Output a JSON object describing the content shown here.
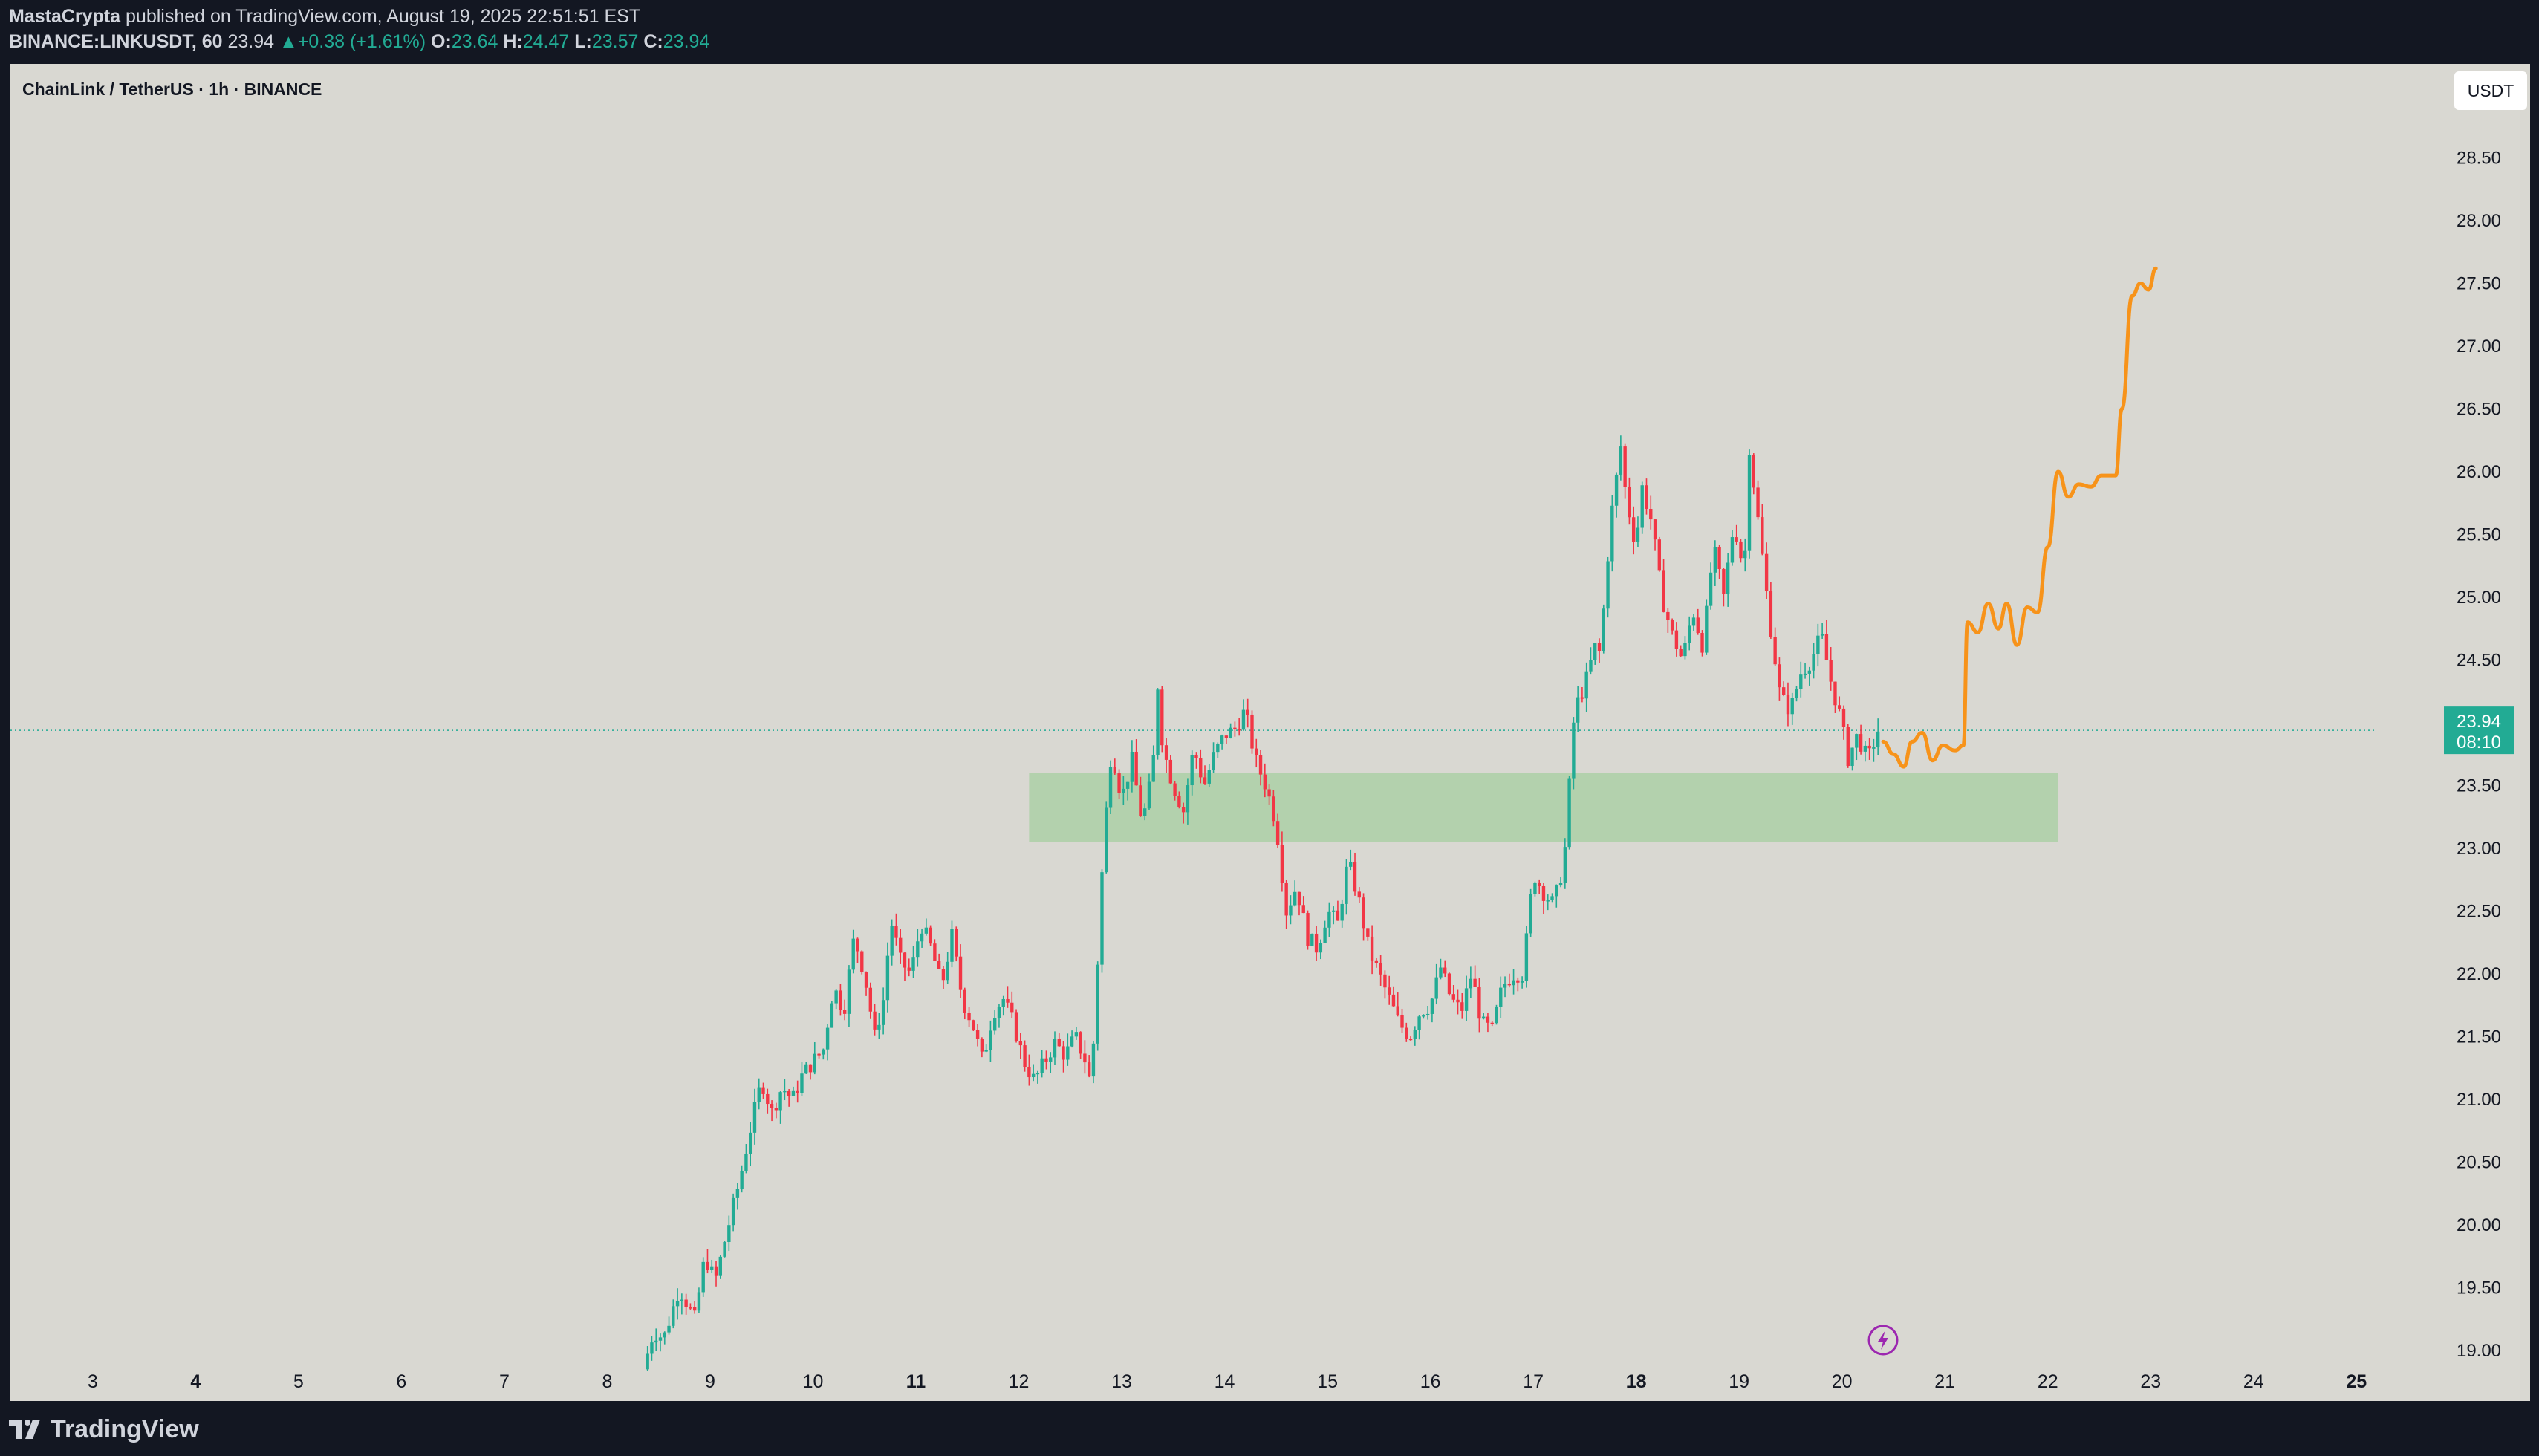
{
  "header": {
    "author": "MastaCrypta",
    "published_text": "published on TradingView.com, August 19, 2025 22:51:51 EST",
    "symbol_line": "BINANCE:LINKUSDT, 60",
    "last": "23.94",
    "change": "+0.38 (+1.61%)",
    "o_label": "O:",
    "o": "23.64",
    "h_label": "H:",
    "h": "24.47",
    "l_label": "L:",
    "l": "23.57",
    "c_label": "C:",
    "c": "23.94"
  },
  "footer": {
    "brand": "TradingView",
    "brand_icon": "tradingview-logo-icon"
  },
  "colors": {
    "up": "#22ab94",
    "down": "#f23645",
    "projection": "#f7931a",
    "zone": "#a5cfa0",
    "background": "#d9d8d2"
  },
  "chart_data": {
    "type": "candlestick",
    "title": "ChainLink / TetherUS · 1h · BINANCE",
    "currency_button": "USDT",
    "x_unit": "day of month (August 2025)",
    "xlim": [
      2.2,
      25.2
    ],
    "ylim": [
      18.8,
      29.2
    ],
    "y_ticks": [
      "28.50",
      "28.00",
      "27.50",
      "27.00",
      "26.50",
      "26.00",
      "25.50",
      "25.00",
      "24.50",
      "24.00",
      "23.50",
      "23.00",
      "22.50",
      "22.00",
      "21.50",
      "21.00",
      "20.50",
      "20.00",
      "19.50",
      "19.00"
    ],
    "x_ticks": [
      {
        "label": "3",
        "day": 3,
        "bold": false
      },
      {
        "label": "4",
        "day": 4,
        "bold": true
      },
      {
        "label": "5",
        "day": 5,
        "bold": false
      },
      {
        "label": "6",
        "day": 6,
        "bold": false
      },
      {
        "label": "7",
        "day": 7,
        "bold": false
      },
      {
        "label": "8",
        "day": 8,
        "bold": false
      },
      {
        "label": "9",
        "day": 9,
        "bold": false
      },
      {
        "label": "10",
        "day": 10,
        "bold": false
      },
      {
        "label": "11",
        "day": 11,
        "bold": true
      },
      {
        "label": "12",
        "day": 12,
        "bold": false
      },
      {
        "label": "13",
        "day": 13,
        "bold": false
      },
      {
        "label": "14",
        "day": 14,
        "bold": false
      },
      {
        "label": "15",
        "day": 15,
        "bold": false
      },
      {
        "label": "16",
        "day": 16,
        "bold": false
      },
      {
        "label": "17",
        "day": 17,
        "bold": false
      },
      {
        "label": "18",
        "day": 18,
        "bold": true
      },
      {
        "label": "19",
        "day": 19,
        "bold": false
      },
      {
        "label": "20",
        "day": 20,
        "bold": false
      },
      {
        "label": "21",
        "day": 21,
        "bold": false
      },
      {
        "label": "22",
        "day": 22,
        "bold": false
      },
      {
        "label": "23",
        "day": 23,
        "bold": false
      },
      {
        "label": "24",
        "day": 24,
        "bold": false
      },
      {
        "label": "25",
        "day": 25,
        "bold": true
      }
    ],
    "last_price": 23.94,
    "last_price_label": "23.94",
    "countdown_label": "08:10",
    "support_zone": {
      "from_day": 12.1,
      "to_day": 22.1,
      "low": 23.05,
      "high": 23.6
    },
    "price_path": [
      [
        8.35,
        18.85
      ],
      [
        8.45,
        19.15
      ],
      [
        8.55,
        19.1
      ],
      [
        8.7,
        19.5
      ],
      [
        8.85,
        19.25
      ],
      [
        8.95,
        19.75
      ],
      [
        9.05,
        19.55
      ],
      [
        9.15,
        19.9
      ],
      [
        9.3,
        20.4
      ],
      [
        9.4,
        20.8
      ],
      [
        9.5,
        21.15
      ],
      [
        9.6,
        20.9
      ],
      [
        9.7,
        21.1
      ],
      [
        9.8,
        21.0
      ],
      [
        9.9,
        21.2
      ],
      [
        10.0,
        21.3
      ],
      [
        10.1,
        21.4
      ],
      [
        10.2,
        21.9
      ],
      [
        10.3,
        21.7
      ],
      [
        10.4,
        22.3
      ],
      [
        10.5,
        22.0
      ],
      [
        10.6,
        21.5
      ],
      [
        10.7,
        21.85
      ],
      [
        10.75,
        22.45
      ],
      [
        10.85,
        22.1
      ],
      [
        10.95,
        22.0
      ],
      [
        11.05,
        22.4
      ],
      [
        11.15,
        22.2
      ],
      [
        11.25,
        21.9
      ],
      [
        11.35,
        22.3
      ],
      [
        11.45,
        21.8
      ],
      [
        11.55,
        21.6
      ],
      [
        11.65,
        21.3
      ],
      [
        11.75,
        21.7
      ],
      [
        11.85,
        21.8
      ],
      [
        11.95,
        21.6
      ],
      [
        12.05,
        21.3
      ],
      [
        12.15,
        21.15
      ],
      [
        12.25,
        21.3
      ],
      [
        12.35,
        21.45
      ],
      [
        12.45,
        21.35
      ],
      [
        12.55,
        21.5
      ],
      [
        12.65,
        21.3
      ],
      [
        12.7,
        21.1
      ],
      [
        12.75,
        21.8
      ],
      [
        12.8,
        22.7
      ],
      [
        12.85,
        23.3
      ],
      [
        12.9,
        23.8
      ],
      [
        13.0,
        23.4
      ],
      [
        13.1,
        23.7
      ],
      [
        13.2,
        23.2
      ],
      [
        13.3,
        23.6
      ],
      [
        13.35,
        24.3
      ],
      [
        13.4,
        23.8
      ],
      [
        13.5,
        23.5
      ],
      [
        13.6,
        23.3
      ],
      [
        13.7,
        23.8
      ],
      [
        13.8,
        23.5
      ],
      [
        13.9,
        23.75
      ],
      [
        14.0,
        23.9
      ],
      [
        14.1,
        23.95
      ],
      [
        14.2,
        24.1
      ],
      [
        14.3,
        23.7
      ],
      [
        14.4,
        23.5
      ],
      [
        14.5,
        23.2
      ],
      [
        14.6,
        22.5
      ],
      [
        14.7,
        22.7
      ],
      [
        14.8,
        22.3
      ],
      [
        14.9,
        22.2
      ],
      [
        15.0,
        22.5
      ],
      [
        15.1,
        22.4
      ],
      [
        15.2,
        22.9
      ],
      [
        15.3,
        22.6
      ],
      [
        15.4,
        22.2
      ],
      [
        15.5,
        22.0
      ],
      [
        15.6,
        21.8
      ],
      [
        15.7,
        21.6
      ],
      [
        15.8,
        21.5
      ],
      [
        15.9,
        21.7
      ],
      [
        16.0,
        21.75
      ],
      [
        16.1,
        22.05
      ],
      [
        16.2,
        21.8
      ],
      [
        16.3,
        21.7
      ],
      [
        16.4,
        22.0
      ],
      [
        16.5,
        21.6
      ],
      [
        16.6,
        21.55
      ],
      [
        16.7,
        21.9
      ],
      [
        16.8,
        22.0
      ],
      [
        16.9,
        22.0
      ],
      [
        17.0,
        22.8
      ],
      [
        17.1,
        22.65
      ],
      [
        17.2,
        22.55
      ],
      [
        17.3,
        22.9
      ],
      [
        17.35,
        23.5
      ],
      [
        17.4,
        24.1
      ],
      [
        17.5,
        24.3
      ],
      [
        17.6,
        24.6
      ],
      [
        17.65,
        24.55
      ],
      [
        17.75,
        25.6
      ],
      [
        17.85,
        26.2
      ],
      [
        17.9,
        25.8
      ],
      [
        18.0,
        25.4
      ],
      [
        18.05,
        25.9
      ],
      [
        18.15,
        25.6
      ],
      [
        18.25,
        25.0
      ],
      [
        18.35,
        24.7
      ],
      [
        18.45,
        24.5
      ],
      [
        18.55,
        24.9
      ],
      [
        18.65,
        24.6
      ],
      [
        18.75,
        25.4
      ],
      [
        18.85,
        25.0
      ],
      [
        18.95,
        25.6
      ],
      [
        19.05,
        25.2
      ],
      [
        19.1,
        26.2
      ],
      [
        19.2,
        25.5
      ],
      [
        19.3,
        24.8
      ],
      [
        19.4,
        24.2
      ],
      [
        19.5,
        24.1
      ],
      [
        19.6,
        24.4
      ],
      [
        19.7,
        24.5
      ],
      [
        19.8,
        24.7
      ],
      [
        19.9,
        24.3
      ],
      [
        20.0,
        24.0
      ],
      [
        20.05,
        23.7
      ],
      [
        20.15,
        23.9
      ],
      [
        20.25,
        23.7
      ],
      [
        20.35,
        23.94
      ]
    ],
    "projection_path": [
      [
        20.4,
        23.85
      ],
      [
        20.5,
        23.75
      ],
      [
        20.6,
        23.65
      ],
      [
        20.68,
        23.85
      ],
      [
        20.78,
        23.92
      ],
      [
        20.88,
        23.7
      ],
      [
        20.98,
        23.82
      ],
      [
        21.1,
        23.78
      ],
      [
        21.18,
        23.82
      ],
      [
        21.22,
        24.8
      ],
      [
        21.32,
        24.72
      ],
      [
        21.42,
        24.95
      ],
      [
        21.52,
        24.75
      ],
      [
        21.6,
        24.95
      ],
      [
        21.7,
        24.62
      ],
      [
        21.8,
        24.92
      ],
      [
        21.9,
        24.88
      ],
      [
        22.0,
        25.4
      ],
      [
        22.1,
        26.0
      ],
      [
        22.2,
        25.8
      ],
      [
        22.3,
        25.9
      ],
      [
        22.42,
        25.88
      ],
      [
        22.52,
        25.97
      ],
      [
        22.66,
        25.97
      ],
      [
        22.72,
        26.5
      ],
      [
        22.82,
        27.4
      ],
      [
        22.9,
        27.5
      ],
      [
        22.98,
        27.45
      ],
      [
        23.05,
        27.62
      ]
    ]
  }
}
